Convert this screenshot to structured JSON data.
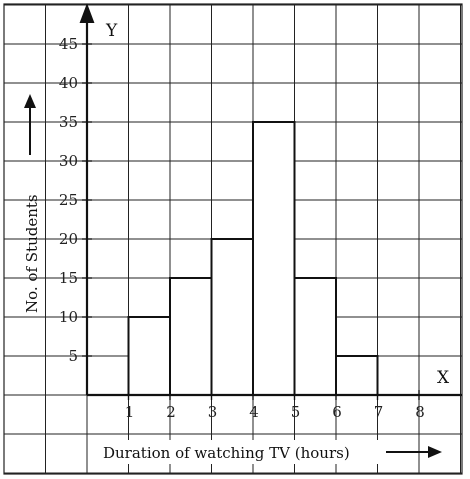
{
  "chart_data": {
    "type": "bar",
    "x_bins": [
      [
        1,
        2
      ],
      [
        2,
        3
      ],
      [
        3,
        4
      ],
      [
        4,
        5
      ],
      [
        5,
        6
      ],
      [
        6,
        7
      ]
    ],
    "values": [
      10,
      15,
      20,
      35,
      15,
      5
    ],
    "xticks": [
      "1",
      "2",
      "3",
      "4",
      "5",
      "6",
      "7",
      "8"
    ],
    "yticks": [
      "5",
      "10",
      "15",
      "20",
      "25",
      "30",
      "35",
      "40",
      "45"
    ],
    "xlabel": "Duration of watching TV (hours)",
    "ylabel": "No. of Students",
    "x_axis_letter": "X",
    "y_axis_letter": "Y",
    "xlim": [
      -1,
      8.5
    ],
    "ylim": [
      -10,
      48
    ],
    "grid": true
  }
}
